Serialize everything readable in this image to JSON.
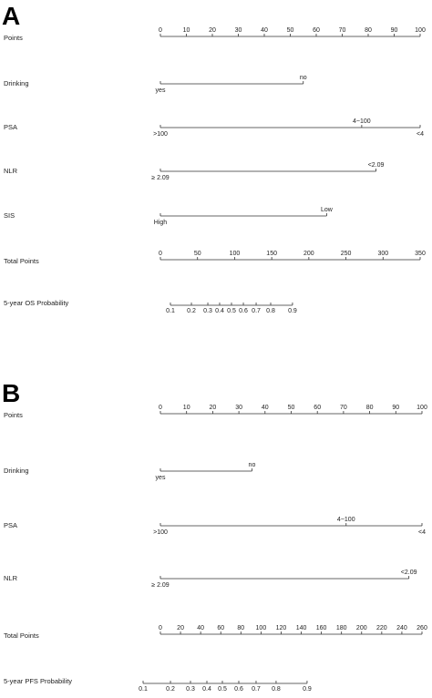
{
  "chart_data": [
    {
      "type": "nomogram",
      "panel_label": "A",
      "points_axis": {
        "title": "Points",
        "xlim": [
          0,
          100
        ],
        "xticks": [
          0,
          10,
          20,
          30,
          40,
          50,
          60,
          70,
          80,
          90,
          100
        ]
      },
      "variables": [
        {
          "name": "Drinking",
          "levels": [
            {
              "label": "yes",
              "points": 0,
              "side": "below"
            },
            {
              "label": "no",
              "points": 55,
              "side": "above"
            }
          ]
        },
        {
          "name": "PSA",
          "levels": [
            {
              "label": ">100",
              "points": 0,
              "side": "below"
            },
            {
              "label": "4~100",
              "points": 77.5,
              "side": "above"
            },
            {
              "label": "<4",
              "points": 100,
              "side": "below"
            }
          ]
        },
        {
          "name": "NLR",
          "levels": [
            {
              "label": "≥ 2.09",
              "points": 0,
              "side": "below"
            },
            {
              "label": "<2.09",
              "points": 83,
              "side": "above"
            }
          ]
        },
        {
          "name": "SIS",
          "levels": [
            {
              "label": "High",
              "points": 0,
              "side": "below"
            },
            {
              "label": "Low",
              "points": 64,
              "side": "above"
            }
          ]
        }
      ],
      "total_points": {
        "title": "Total Points",
        "xlim": [
          0,
          350
        ],
        "xticks": [
          0,
          50,
          100,
          150,
          200,
          250,
          300,
          350
        ]
      },
      "probability": {
        "title": "5-year OS Probability",
        "ticks": [
          {
            "value": 0.1,
            "total_points": 13.5
          },
          {
            "value": 0.2,
            "total_points": 41.8
          },
          {
            "value": 0.3,
            "total_points": 63.9
          },
          {
            "value": 0.4,
            "total_points": 79.8
          },
          {
            "value": 0.5,
            "total_points": 95.8
          },
          {
            "value": 0.6,
            "total_points": 111.8
          },
          {
            "value": 0.7,
            "total_points": 129
          },
          {
            "value": 0.8,
            "total_points": 148.6
          },
          {
            "value": 0.9,
            "total_points": 178
          }
        ]
      }
    },
    {
      "type": "nomogram",
      "panel_label": "B",
      "points_axis": {
        "title": "Points",
        "xlim": [
          0,
          100
        ],
        "xticks": [
          0,
          10,
          20,
          30,
          40,
          50,
          60,
          70,
          80,
          90,
          100
        ]
      },
      "variables": [
        {
          "name": "Drinking",
          "levels": [
            {
              "label": "yes",
              "points": 0,
              "side": "below"
            },
            {
              "label": "no",
              "points": 35,
              "side": "above"
            }
          ]
        },
        {
          "name": "PSA",
          "levels": [
            {
              "label": ">100",
              "points": 0,
              "side": "below"
            },
            {
              "label": "4~100",
              "points": 71,
              "side": "above"
            },
            {
              "label": "<4",
              "points": 100,
              "side": "below"
            }
          ]
        },
        {
          "name": "NLR",
          "levels": [
            {
              "label": "≥ 2.09",
              "points": 0,
              "side": "below"
            },
            {
              "label": "<2.09",
              "points": 95,
              "side": "above"
            }
          ]
        }
      ],
      "total_points": {
        "title": "Total Points",
        "xlim": [
          0,
          260
        ],
        "xticks": [
          0,
          20,
          40,
          60,
          80,
          100,
          120,
          140,
          160,
          180,
          200,
          220,
          240,
          260
        ]
      },
      "probability": {
        "title": "5-year PFS Probability",
        "ticks": [
          {
            "value": 0.1,
            "total_points": -17.2
          },
          {
            "value": 0.2,
            "total_points": 10
          },
          {
            "value": 0.3,
            "total_points": 29.9
          },
          {
            "value": 0.4,
            "total_points": 46.2
          },
          {
            "value": 0.5,
            "total_points": 61.6
          },
          {
            "value": 0.6,
            "total_points": 77.9
          },
          {
            "value": 0.7,
            "total_points": 95.1
          },
          {
            "value": 0.8,
            "total_points": 115
          },
          {
            "value": 0.9,
            "total_points": 145.8
          }
        ]
      }
    }
  ]
}
